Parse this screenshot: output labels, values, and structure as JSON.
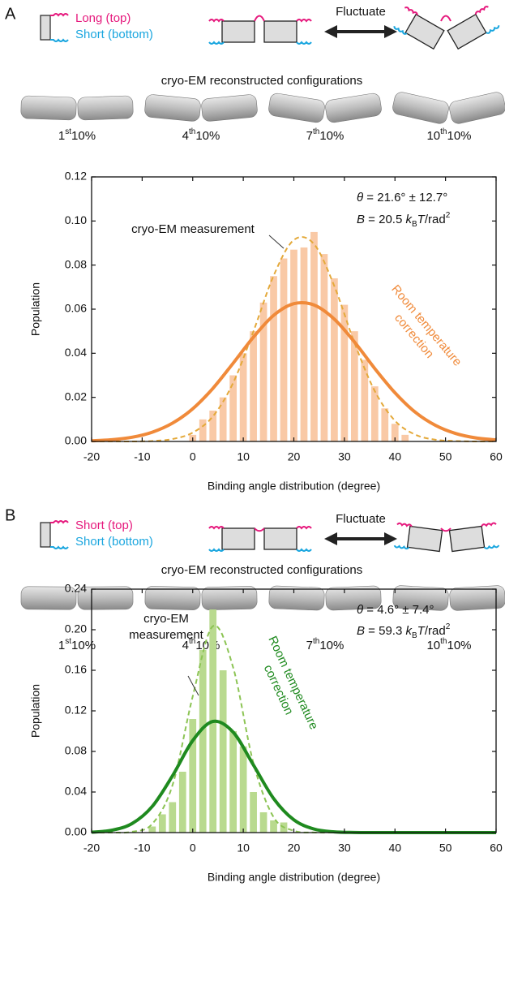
{
  "chart_data": [
    {
      "type": "histogram",
      "panel": "A",
      "schematic": {
        "top_label": "Long (top)",
        "bottom_label": "Short (bottom)",
        "arrow_label": "Fluctuate"
      },
      "configurations_title": "cryo-EM reconstructed configurations",
      "configurations": [
        {
          "n": "1",
          "sup": "st",
          "text": "10%"
        },
        {
          "n": "4",
          "sup": "th",
          "text": "10%"
        },
        {
          "n": "7",
          "sup": "th",
          "text": "10%"
        },
        {
          "n": "10",
          "sup": "th",
          "text": "10%"
        }
      ],
      "xlabel": "Binding angle distribution (degree)",
      "ylabel": "Population",
      "xlim": [
        -20,
        60
      ],
      "xticks": [
        -20,
        -10,
        0,
        10,
        20,
        30,
        40,
        50,
        60
      ],
      "ylim": [
        0,
        0.12
      ],
      "yticks": [
        {
          "value": 0,
          "label": "0.00"
        },
        {
          "value": 0.02,
          "label": "0.02"
        },
        {
          "value": 0.04,
          "label": "0.04"
        },
        {
          "value": 0.06,
          "label": "0.06"
        },
        {
          "value": 0.08,
          "label": "0.08"
        },
        {
          "value": 0.1,
          "label": "0.10"
        },
        {
          "value": 0.12,
          "label": "0.12"
        }
      ],
      "bar_color": "#f9c9a6",
      "bins": [
        -1,
        1,
        3,
        5,
        7,
        9,
        11,
        13,
        15,
        17,
        19,
        21,
        23,
        25,
        27,
        29,
        31,
        33,
        35,
        37,
        39,
        41,
        43
      ],
      "counts": [
        0.003,
        0.01,
        0.014,
        0.02,
        0.03,
        0.04,
        0.05,
        0.063,
        0.075,
        0.083,
        0.087,
        0.088,
        0.095,
        0.085,
        0.074,
        0.062,
        0.05,
        0.037,
        0.025,
        0.015,
        0.008,
        0.003
      ],
      "curve_x": [
        -20,
        -16,
        -12,
        -8,
        -4,
        0,
        4,
        8,
        12,
        16,
        20,
        24,
        28,
        32,
        36,
        40,
        44,
        48,
        52,
        56,
        60
      ],
      "curves": [
        {
          "label": [
            "cryo-EM measurement"
          ],
          "color": "#e4a93a",
          "dashed": true,
          "values": [
            0,
            0,
            0,
            0.0002,
            0.0011,
            0.004,
            0.0114,
            0.0266,
            0.0499,
            0.0752,
            0.0914,
            0.0895,
            0.0705,
            0.0447,
            0.0229,
            0.0094,
            0.0031,
            0.0008,
            0.0002,
            0,
            0
          ]
        },
        {
          "label": [
            "Room temperature",
            "correction"
          ],
          "color": "#f08a3a",
          "dashed": false,
          "values": [
            0.0003,
            0.0008,
            0.0019,
            0.0042,
            0.0083,
            0.0148,
            0.0241,
            0.0355,
            0.0473,
            0.0572,
            0.0625,
            0.0619,
            0.0555,
            0.0451,
            0.0331,
            0.0221,
            0.0133,
            0.0073,
            0.0036,
            0.0016,
            0.0007
          ]
        }
      ],
      "stats": [
        [
          {
            "text": "θ",
            "style": "italic"
          },
          {
            "text": " = 21.6° ± 12.7°"
          }
        ],
        [
          {
            "text": "B",
            "style": "italic"
          },
          {
            "text": " = 20.5 "
          },
          {
            "text": "k",
            "style": "italic"
          },
          {
            "text": "B",
            "style": "sub"
          },
          {
            "text": "T",
            "style": "italic"
          },
          {
            "text": "/rad"
          },
          {
            "text": "2",
            "style": "sup"
          }
        ]
      ]
    },
    {
      "type": "histogram",
      "panel": "B",
      "schematic": {
        "top_label": "Short (top)",
        "bottom_label": "Short (bottom)",
        "arrow_label": "Fluctuate"
      },
      "configurations_title": "cryo-EM reconstructed configurations",
      "configurations": [
        {
          "n": "1",
          "sup": "st",
          "text": "10%"
        },
        {
          "n": "4",
          "sup": "th",
          "text": "10%"
        },
        {
          "n": "7",
          "sup": "th",
          "text": "10%"
        },
        {
          "n": "10",
          "sup": "th",
          "text": "10%"
        }
      ],
      "xlabel": "Binding angle distribution (degree)",
      "ylabel": "Population",
      "xlim": [
        -20,
        60
      ],
      "xticks": [
        -20,
        -10,
        0,
        10,
        20,
        30,
        40,
        50,
        60
      ],
      "ylim": [
        0,
        0.24
      ],
      "yticks": [
        {
          "value": 0,
          "label": "0.00"
        },
        {
          "value": 0.04,
          "label": "0.04"
        },
        {
          "value": 0.08,
          "label": "0.08"
        },
        {
          "value": 0.12,
          "label": "0.12"
        },
        {
          "value": 0.16,
          "label": "0.16"
        },
        {
          "value": 0.2,
          "label": "0.20"
        },
        {
          "value": 0.24,
          "label": "0.24"
        }
      ],
      "bar_color": "#b9da8f",
      "bins": [
        -9,
        -7,
        -5,
        -3,
        -1,
        1,
        3,
        5,
        7,
        9,
        11,
        13,
        15,
        17,
        19
      ],
      "counts": [
        0.006,
        0.018,
        0.03,
        0.06,
        0.112,
        0.18,
        0.22,
        0.16,
        0.1,
        0.085,
        0.04,
        0.02,
        0.012,
        0.01
      ],
      "curve_x": [
        -20,
        -16,
        -12,
        -8,
        -4,
        0,
        4,
        8,
        12,
        16,
        20,
        24,
        28,
        32,
        36,
        40,
        44,
        48,
        52,
        56,
        60
      ],
      "curves": [
        {
          "label": [
            "cryo-EM",
            "measurement"
          ],
          "color": "#8cc454",
          "dashed": true,
          "values": [
            0,
            0,
            0.0008,
            0.0086,
            0.0467,
            0.1343,
            0.2035,
            0.1627,
            0.0686,
            0.0152,
            0.0018,
            0.0001,
            0,
            0,
            0,
            0,
            0,
            0,
            0,
            0,
            0
          ]
        },
        {
          "label": [
            "Room temperature",
            "correction"
          ],
          "color": "#1f8a1f",
          "dashed": false,
          "values": [
            0.0004,
            0.0023,
            0.0089,
            0.0258,
            0.056,
            0.0907,
            0.1096,
            0.099,
            0.0667,
            0.0336,
            0.0126,
            0.0035,
            0.0007,
            0.0001,
            0,
            0,
            0,
            0,
            0,
            0,
            0
          ]
        }
      ],
      "stats": [
        [
          {
            "text": "θ",
            "style": "italic"
          },
          {
            "text": " = 4.6° ± 7.4°"
          }
        ],
        [
          {
            "text": "B",
            "style": "italic"
          },
          {
            "text": " = 59.3 "
          },
          {
            "text": "k",
            "style": "italic"
          },
          {
            "text": "B",
            "style": "sub"
          },
          {
            "text": "T",
            "style": "italic"
          },
          {
            "text": "/rad"
          },
          {
            "text": "2",
            "style": "sup"
          }
        ]
      ]
    }
  ]
}
